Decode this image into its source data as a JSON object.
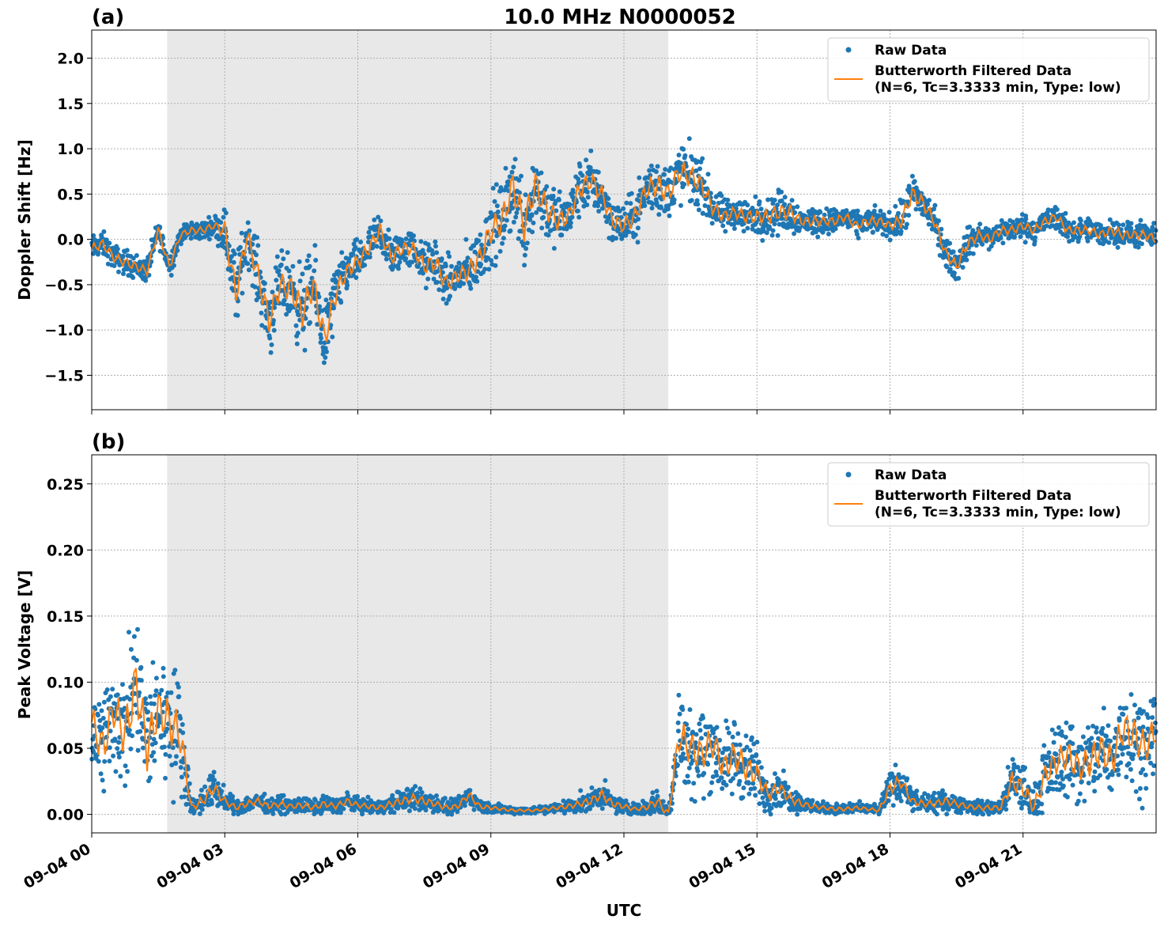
{
  "figure": {
    "title": "10.0 MHz N0000052",
    "xlabel": "UTC"
  },
  "colors": {
    "raw": "#1f77b4",
    "filtered": "#ff7f0e",
    "night_shade": "#e8e8e8"
  },
  "chart_data": [
    {
      "panel_label": "(a)",
      "type": "scatter",
      "ylabel": "Doppler Shift [Hz]",
      "xlim_hours": [
        0,
        24
      ],
      "ylim": [
        -1.88,
        2.31
      ],
      "yticks": [
        2.0,
        1.5,
        1.0,
        0.5,
        0.0,
        -0.5,
        -1.0,
        -1.5
      ],
      "ytick_labels": [
        "2.0",
        "1.5",
        "1.0",
        "0.5",
        "0.0",
        "−0.5",
        "−1.0",
        "−1.5"
      ],
      "xticks_hours": [
        0,
        3,
        6,
        9,
        12,
        15,
        18,
        21
      ],
      "xtick_labels": [
        "09-04 00",
        "09-04 03",
        "09-04 06",
        "09-04 09",
        "09-04 12",
        "09-04 15",
        "09-04 18",
        "09-04 21"
      ],
      "shaded_range_hours": [
        1.7,
        13.0
      ],
      "grid": true,
      "legend": {
        "placement": "top-right",
        "entries": [
          "Raw Data",
          "Butterworth Filtered Data",
          "(N=6, Tc=3.3333 min, Type: low)"
        ]
      },
      "series": [
        {
          "name": "Butterworth Filtered Data",
          "x_hours": [
            0,
            0.25,
            0.5,
            0.75,
            1.0,
            1.25,
            1.5,
            1.75,
            2.0,
            2.25,
            2.5,
            2.75,
            3.0,
            3.25,
            3.5,
            3.75,
            4.0,
            4.25,
            4.5,
            4.75,
            5.0,
            5.25,
            5.5,
            5.75,
            6.0,
            6.25,
            6.5,
            6.75,
            7.0,
            7.25,
            7.5,
            7.75,
            8.0,
            8.25,
            8.5,
            8.75,
            9.0,
            9.25,
            9.5,
            9.75,
            10.0,
            10.25,
            10.5,
            10.75,
            11.0,
            11.25,
            11.5,
            11.75,
            12.0,
            12.25,
            12.5,
            12.75,
            13.0,
            13.25,
            13.5,
            13.75,
            14.0,
            14.25,
            14.5,
            14.75,
            15.0,
            15.25,
            15.5,
            15.75,
            16.0,
            16.25,
            16.5,
            16.75,
            17.0,
            17.25,
            17.5,
            17.75,
            18.0,
            18.25,
            18.5,
            18.75,
            19.0,
            19.25,
            19.5,
            19.75,
            20.0,
            20.25,
            20.5,
            20.75,
            21.0,
            21.25,
            21.5,
            21.75,
            22.0,
            22.25,
            22.5,
            22.75,
            23.0,
            23.25,
            23.5,
            23.75,
            24.0
          ],
          "values": [
            -0.1,
            -0.05,
            -0.2,
            -0.25,
            -0.3,
            -0.35,
            0.1,
            -0.3,
            0.05,
            0.1,
            0.1,
            0.15,
            0.1,
            -0.6,
            0.05,
            -0.4,
            -0.9,
            -0.5,
            -0.55,
            -0.8,
            -0.5,
            -1.1,
            -0.6,
            -0.35,
            -0.25,
            -0.1,
            0.1,
            -0.2,
            -0.1,
            -0.1,
            -0.3,
            -0.25,
            -0.5,
            -0.4,
            -0.35,
            -0.2,
            0.1,
            0.2,
            0.6,
            0.15,
            0.6,
            0.35,
            0.2,
            0.25,
            0.55,
            0.65,
            0.5,
            0.2,
            0.15,
            0.25,
            0.55,
            0.6,
            0.5,
            0.75,
            0.7,
            0.6,
            0.35,
            0.25,
            0.3,
            0.25,
            0.25,
            0.25,
            0.3,
            0.3,
            0.2,
            0.2,
            0.2,
            0.2,
            0.25,
            0.15,
            0.2,
            0.2,
            0.15,
            0.2,
            0.5,
            0.4,
            0.2,
            -0.15,
            -0.3,
            -0.05,
            0.05,
            0.0,
            0.1,
            0.1,
            0.15,
            0.1,
            0.2,
            0.25,
            0.1,
            0.1,
            0.1,
            0.05,
            0.1,
            0.05,
            0.05,
            0.05,
            0.0
          ]
        },
        {
          "name": "Raw Data",
          "spread_hz": [
            0.2,
            0.2,
            0.2,
            0.2,
            0.2,
            0.2,
            0.2,
            0.2,
            0.15,
            0.15,
            0.15,
            0.15,
            0.4,
            0.6,
            0.4,
            0.5,
            0.6,
            0.5,
            0.6,
            0.7,
            0.6,
            0.6,
            0.5,
            0.35,
            0.35,
            0.3,
            0.35,
            0.35,
            0.3,
            0.3,
            0.35,
            0.4,
            0.4,
            0.35,
            0.45,
            0.45,
            0.6,
            0.6,
            0.7,
            0.7,
            0.7,
            0.55,
            0.45,
            0.4,
            0.45,
            0.45,
            0.4,
            0.35,
            0.35,
            0.4,
            0.45,
            0.5,
            0.45,
            0.5,
            0.5,
            0.4,
            0.3,
            0.3,
            0.25,
            0.3,
            0.3,
            0.3,
            0.35,
            0.35,
            0.2,
            0.25,
            0.2,
            0.2,
            0.2,
            0.2,
            0.2,
            0.2,
            0.2,
            0.3,
            0.35,
            0.3,
            0.25,
            0.25,
            0.25,
            0.25,
            0.2,
            0.2,
            0.2,
            0.2,
            0.2,
            0.2,
            0.2,
            0.2,
            0.2,
            0.2,
            0.2,
            0.2,
            0.2,
            0.2,
            0.2,
            0.2,
            0.2
          ]
        }
      ]
    },
    {
      "panel_label": "(b)",
      "type": "scatter",
      "ylabel": "Peak Voltage [V]",
      "xlim_hours": [
        0,
        24
      ],
      "ylim": [
        -0.014,
        0.272
      ],
      "yticks": [
        0.25,
        0.2,
        0.15,
        0.1,
        0.05,
        0.0
      ],
      "ytick_labels": [
        "0.25",
        "0.20",
        "0.15",
        "0.10",
        "0.05",
        "0.00"
      ],
      "xticks_hours": [
        0,
        3,
        6,
        9,
        12,
        15,
        18,
        21
      ],
      "xtick_labels": [
        "09-04 00",
        "09-04 03",
        "09-04 06",
        "09-04 09",
        "09-04 12",
        "09-04 15",
        "09-04 18",
        "09-04 21"
      ],
      "shaded_range_hours": [
        1.7,
        13.0
      ],
      "grid": true,
      "legend": {
        "placement": "top-right",
        "entries": [
          "Raw Data",
          "Butterworth Filtered Data",
          "(N=6, Tc=3.3333 min, Type: low)"
        ]
      },
      "series": [
        {
          "name": "Butterworth Filtered Data",
          "x_hours": [
            0,
            0.25,
            0.5,
            0.75,
            1.0,
            1.25,
            1.5,
            1.75,
            2.0,
            2.25,
            2.5,
            2.75,
            3.0,
            3.25,
            3.5,
            3.75,
            4.0,
            4.25,
            4.5,
            4.75,
            5.0,
            5.25,
            5.5,
            5.75,
            6.0,
            6.25,
            6.5,
            6.75,
            7.0,
            7.25,
            7.5,
            7.75,
            8.0,
            8.25,
            8.5,
            8.75,
            9.0,
            9.25,
            9.5,
            9.75,
            10.0,
            10.25,
            10.5,
            10.75,
            11.0,
            11.25,
            11.5,
            11.75,
            12.0,
            12.25,
            12.5,
            12.75,
            13.0,
            13.25,
            13.5,
            13.75,
            14.0,
            14.25,
            14.5,
            14.75,
            15.0,
            15.25,
            15.5,
            15.75,
            16.0,
            16.25,
            16.5,
            16.75,
            17.0,
            17.25,
            17.5,
            17.75,
            18.0,
            18.25,
            18.5,
            18.75,
            19.0,
            19.25,
            19.5,
            19.75,
            20.0,
            20.25,
            20.5,
            20.75,
            21.0,
            21.25,
            21.5,
            21.75,
            22.0,
            22.25,
            22.5,
            22.75,
            23.0,
            23.25,
            23.5,
            23.75,
            24.0
          ],
          "values": [
            0.07,
            0.05,
            0.08,
            0.06,
            0.1,
            0.05,
            0.08,
            0.07,
            0.06,
            0.005,
            0.01,
            0.02,
            0.01,
            0.005,
            0.008,
            0.01,
            0.006,
            0.008,
            0.006,
            0.007,
            0.005,
            0.008,
            0.006,
            0.01,
            0.007,
            0.006,
            0.005,
            0.008,
            0.01,
            0.012,
            0.01,
            0.008,
            0.005,
            0.006,
            0.015,
            0.006,
            0.005,
            0.004,
            0.003,
            0.003,
            0.003,
            0.004,
            0.005,
            0.006,
            0.008,
            0.01,
            0.015,
            0.008,
            0.006,
            0.004,
            0.005,
            0.01,
            0.0,
            0.06,
            0.05,
            0.045,
            0.055,
            0.035,
            0.045,
            0.035,
            0.03,
            0.015,
            0.02,
            0.012,
            0.008,
            0.006,
            0.005,
            0.004,
            0.004,
            0.005,
            0.004,
            0.003,
            0.02,
            0.025,
            0.01,
            0.008,
            0.008,
            0.01,
            0.008,
            0.006,
            0.005,
            0.005,
            0.005,
            0.025,
            0.02,
            0.005,
            0.03,
            0.04,
            0.045,
            0.035,
            0.04,
            0.05,
            0.04,
            0.065,
            0.06,
            0.05,
            0.065
          ]
        },
        {
          "name": "Raw Data",
          "spread_v": [
            0.05,
            0.06,
            0.06,
            0.07,
            0.08,
            0.07,
            0.06,
            0.07,
            0.06,
            0.01,
            0.015,
            0.02,
            0.012,
            0.008,
            0.01,
            0.01,
            0.008,
            0.01,
            0.008,
            0.01,
            0.008,
            0.01,
            0.008,
            0.01,
            0.008,
            0.008,
            0.008,
            0.01,
            0.012,
            0.014,
            0.012,
            0.01,
            0.008,
            0.008,
            0.012,
            0.008,
            0.006,
            0.005,
            0.004,
            0.004,
            0.004,
            0.005,
            0.006,
            0.008,
            0.01,
            0.012,
            0.015,
            0.01,
            0.008,
            0.006,
            0.008,
            0.015,
            0.01,
            0.05,
            0.05,
            0.05,
            0.05,
            0.04,
            0.045,
            0.04,
            0.035,
            0.02,
            0.02,
            0.015,
            0.01,
            0.008,
            0.006,
            0.006,
            0.006,
            0.006,
            0.005,
            0.005,
            0.02,
            0.02,
            0.012,
            0.01,
            0.01,
            0.012,
            0.01,
            0.008,
            0.008,
            0.008,
            0.008,
            0.03,
            0.03,
            0.02,
            0.035,
            0.04,
            0.045,
            0.045,
            0.045,
            0.05,
            0.05,
            0.055,
            0.055,
            0.05,
            0.05
          ]
        }
      ]
    }
  ]
}
